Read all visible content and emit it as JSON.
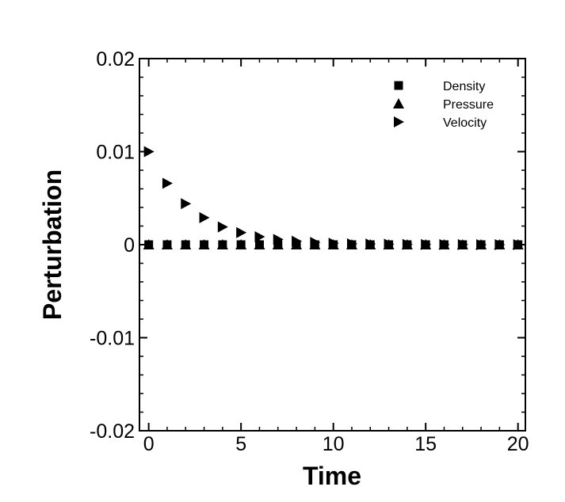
{
  "chart_data": {
    "type": "scatter",
    "xlabel": "Time",
    "ylabel": "Perturbation",
    "xlim": [
      -0.5,
      20.4
    ],
    "ylim": [
      -0.02,
      0.02
    ],
    "x_ticks": [
      0,
      5,
      10,
      15,
      20
    ],
    "x_tick_labels": [
      "0",
      "5",
      "10",
      "15",
      "20"
    ],
    "y_ticks": [
      0.02,
      0.01,
      0,
      -0.01,
      -0.02
    ],
    "y_tick_labels": [
      "0.02",
      "0.01",
      "0",
      "-0.01",
      "-0.02"
    ],
    "grid": false,
    "legend_position": "top-right",
    "x": [
      0,
      1,
      2,
      3,
      4,
      5,
      6,
      7,
      8,
      9,
      10,
      11,
      12,
      13,
      14,
      15,
      16,
      17,
      18,
      19,
      20
    ],
    "series": [
      {
        "name": "Density",
        "marker": "square",
        "values": [
          0,
          0,
          0,
          0,
          0,
          0,
          0,
          0,
          0,
          0,
          0,
          0,
          0,
          0,
          0,
          0,
          0,
          0,
          0,
          0,
          0
        ]
      },
      {
        "name": "Pressure",
        "marker": "triangle-up",
        "values": [
          0,
          0,
          0,
          0,
          0,
          0,
          0,
          0,
          0,
          0,
          0,
          0,
          0,
          0,
          0,
          0,
          0,
          0,
          0,
          0,
          0
        ]
      },
      {
        "name": "Velocity",
        "marker": "triangle-right",
        "values": [
          0.01,
          0.0066,
          0.0044,
          0.0029,
          0.0019,
          0.0013,
          0.00085,
          0.00056,
          0.00037,
          0.00024,
          0.00016,
          0.0001,
          7e-05,
          5e-05,
          3e-05,
          2e-05,
          1e-05,
          1e-05,
          0,
          0,
          0
        ]
      }
    ]
  }
}
